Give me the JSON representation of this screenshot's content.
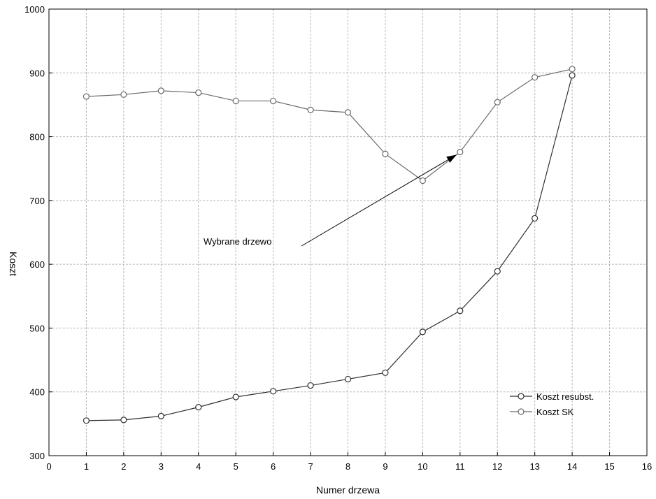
{
  "chart_data": {
    "type": "line",
    "xlabel": "Numer drzewa",
    "ylabel": "Koszt",
    "xlim": [
      0,
      16
    ],
    "ylim": [
      300,
      1000
    ],
    "xticks": [
      "0",
      "1",
      "2",
      "3",
      "4",
      "5",
      "6",
      "7",
      "8",
      "9",
      "10",
      "11",
      "12",
      "13",
      "14",
      "15",
      "16"
    ],
    "yticks": [
      "300",
      "400",
      "500",
      "600",
      "700",
      "800",
      "900",
      "1000"
    ],
    "grid": true,
    "legend_position": "bottom-right",
    "series": [
      {
        "name": "Koszt resubst.",
        "color": "#303030",
        "marker": "open-circle",
        "x": [
          1,
          2,
          3,
          4,
          5,
          6,
          7,
          8,
          9,
          10,
          11,
          12,
          13,
          14
        ],
        "y": [
          355,
          356,
          362,
          376,
          392,
          401,
          410,
          420,
          430,
          494,
          527,
          589,
          672,
          896
        ]
      },
      {
        "name": "Koszt SK",
        "color": "#6a6a6a",
        "marker": "open-circle",
        "x": [
          1,
          2,
          3,
          4,
          5,
          6,
          7,
          8,
          9,
          10,
          11,
          12,
          13,
          14
        ],
        "y": [
          863,
          866,
          872,
          869,
          856,
          856,
          842,
          838,
          773,
          731,
          776,
          854,
          893,
          906
        ]
      }
    ],
    "annotation": {
      "text": "Wybrane drzewo",
      "arrow_to": {
        "x": 11,
        "y": 776
      }
    }
  }
}
